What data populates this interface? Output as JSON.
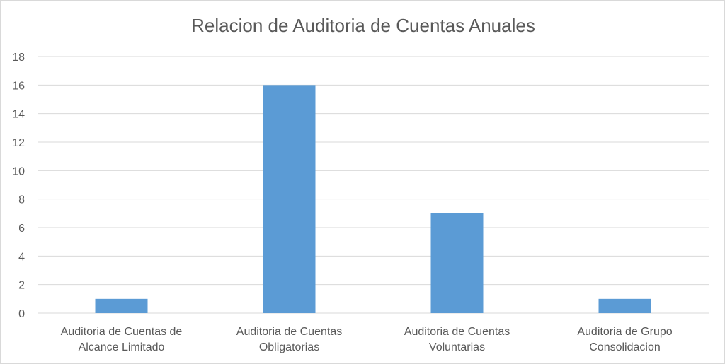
{
  "chart_data": {
    "type": "bar",
    "title": "Relacion de Auditoria de Cuentas Anuales",
    "categories": [
      [
        "Auditoria de Cuentas de",
        "Alcance Limitado"
      ],
      [
        "Auditoria de Cuentas",
        "Obligatorias"
      ],
      [
        "Auditoria de Cuentas",
        "Voluntarias"
      ],
      [
        "Auditoria de Grupo",
        "Consolidacion"
      ]
    ],
    "values": [
      1,
      16,
      7,
      1
    ],
    "ylim": [
      0,
      18
    ],
    "yticks": [
      0,
      2,
      4,
      6,
      8,
      10,
      12,
      14,
      16,
      18
    ],
    "grid": true,
    "legend": "none",
    "bar_color": "#5b9bd5"
  }
}
